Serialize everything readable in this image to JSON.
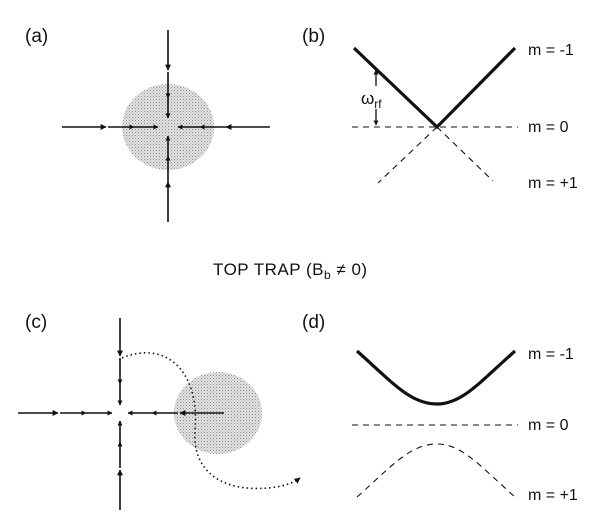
{
  "panels": {
    "a": {
      "label": "(a)"
    },
    "b": {
      "label": "(b)",
      "states": [
        "m = -1",
        "m = 0",
        "m = +1"
      ],
      "omega": "ω",
      "omega_sub": "rf"
    },
    "c": {
      "label": "(c)"
    },
    "d": {
      "label": "(d)",
      "states": [
        "m = -1",
        "m = 0",
        "m = +1"
      ]
    }
  },
  "middle_title": {
    "main": "TOP TRAP (B",
    "sub": "b",
    "tail": " ≠ 0)"
  },
  "colors": {
    "ink": "#111111",
    "cloud": "#c8c8c8"
  }
}
